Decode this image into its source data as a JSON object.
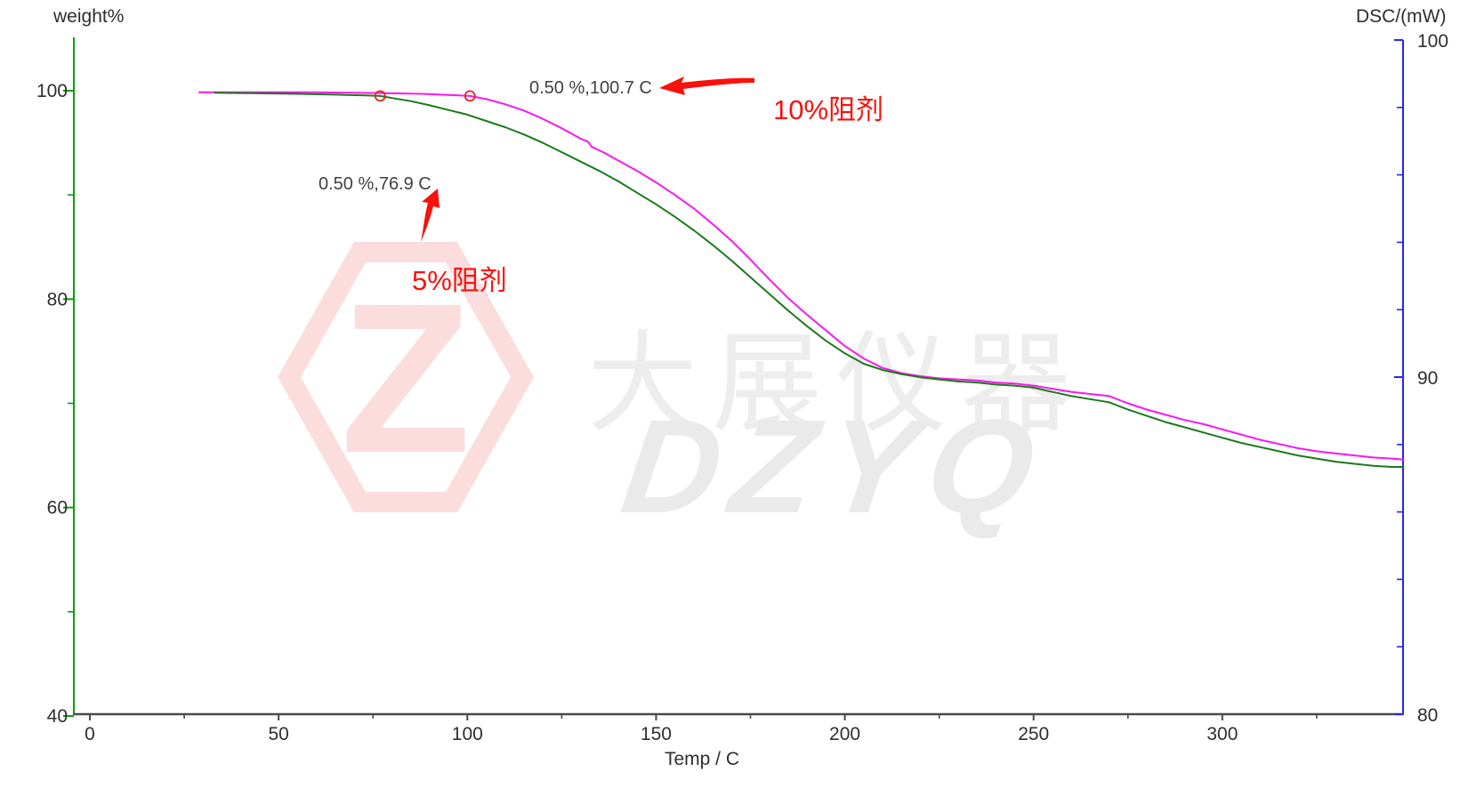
{
  "colors": {
    "left_axis": "#0aa00a",
    "right_axis": "#2727e8",
    "x_axis": "#4a4a4a",
    "tick_text": "#2e2e2e",
    "annotation_text": "#3f3f49",
    "red": "#fb100c",
    "watermark_pink": "#fbdddd",
    "watermark_gray": "#ededed",
    "series_10pct": "#f917ef",
    "series_5pct": "#1b7a1b",
    "marker": "#e8251a"
  },
  "axes": {
    "left": {
      "label": "weight%",
      "major_ticks": [
        100,
        80,
        60,
        40
      ],
      "minor_ticks": [
        90,
        70,
        50
      ],
      "range": [
        40,
        100
      ]
    },
    "right": {
      "label": "DSC/(mW)",
      "major_ticks": [
        100,
        90,
        80
      ],
      "minor_ticks": [
        98,
        96,
        94,
        92,
        88,
        86,
        84,
        82
      ],
      "range": [
        80,
        100
      ]
    },
    "bottom": {
      "label": "Temp / C",
      "major_ticks": [
        0,
        50,
        100,
        150,
        200,
        250,
        300
      ],
      "minor_ticks": [
        25,
        75,
        125,
        175,
        225,
        275,
        325
      ],
      "range": [
        0,
        348
      ]
    }
  },
  "annotations": {
    "p1": {
      "text": "0.50 %,100.7 C",
      "temp": 100.7,
      "weight_pct": 99.5
    },
    "p2": {
      "text": "0.50 %,76.9 C",
      "temp": 76.9,
      "weight_pct": 99.5
    },
    "l1": {
      "text": "10%阻剂"
    },
    "l2": {
      "text": "5%阻剂"
    }
  },
  "watermark": {
    "cn": "大展仪器",
    "en": "DZYQ",
    "logo_letter": "Z"
  },
  "chart_data": {
    "type": "line",
    "title": "",
    "xlabel": "Temp / C",
    "ylabel_left": "weight%",
    "ylabel_right": "DSC/(mW)",
    "x_range": [
      0,
      350
    ],
    "y_left_range": [
      40,
      100
    ],
    "y_right_range": [
      80,
      100
    ],
    "grid": false,
    "legend": "none",
    "markers": [
      {
        "series": "5%阻剂",
        "temp": 76.9,
        "weight": 99.5
      },
      {
        "series": "10%阻剂",
        "temp": 100.7,
        "weight": 99.5
      }
    ],
    "series": [
      {
        "name": "10%阻剂",
        "color": "#f917ef",
        "axis": "left",
        "points": [
          [
            29,
            99.85
          ],
          [
            40,
            99.85
          ],
          [
            50,
            99.85
          ],
          [
            60,
            99.85
          ],
          [
            70,
            99.8
          ],
          [
            80,
            99.75
          ],
          [
            88,
            99.7
          ],
          [
            95,
            99.6
          ],
          [
            100.7,
            99.5
          ],
          [
            105,
            99.2
          ],
          [
            110,
            98.7
          ],
          [
            115,
            98.1
          ],
          [
            120,
            97.3
          ],
          [
            125,
            96.4
          ],
          [
            130,
            95.4
          ],
          [
            132,
            95.1
          ],
          [
            133,
            94.6
          ],
          [
            136,
            94.1
          ],
          [
            140,
            93.3
          ],
          [
            145,
            92.3
          ],
          [
            150,
            91.2
          ],
          [
            155,
            90.0
          ],
          [
            160,
            88.7
          ],
          [
            165,
            87.2
          ],
          [
            170,
            85.6
          ],
          [
            175,
            83.8
          ],
          [
            180,
            81.9
          ],
          [
            185,
            80.1
          ],
          [
            190,
            78.5
          ],
          [
            195,
            77.0
          ],
          [
            200,
            75.5
          ],
          [
            205,
            74.3
          ],
          [
            210,
            73.4
          ],
          [
            215,
            72.9
          ],
          [
            220,
            72.6
          ],
          [
            225,
            72.4
          ],
          [
            230,
            72.3
          ],
          [
            235,
            72.2
          ],
          [
            240,
            72.0
          ],
          [
            245,
            71.9
          ],
          [
            250,
            71.7
          ],
          [
            255,
            71.4
          ],
          [
            260,
            71.1
          ],
          [
            265,
            70.9
          ],
          [
            270,
            70.7
          ],
          [
            275,
            70.0
          ],
          [
            280,
            69.4
          ],
          [
            285,
            68.9
          ],
          [
            290,
            68.4
          ],
          [
            295,
            68.0
          ],
          [
            300,
            67.5
          ],
          [
            305,
            67.0
          ],
          [
            310,
            66.5
          ],
          [
            315,
            66.1
          ],
          [
            320,
            65.7
          ],
          [
            325,
            65.4
          ],
          [
            330,
            65.2
          ],
          [
            335,
            65.0
          ],
          [
            340,
            64.8
          ],
          [
            345,
            64.7
          ],
          [
            348,
            64.6
          ]
        ]
      },
      {
        "name": "5%阻剂",
        "color": "#1b7a1b",
        "axis": "left",
        "points": [
          [
            33,
            99.8
          ],
          [
            45,
            99.75
          ],
          [
            55,
            99.7
          ],
          [
            62,
            99.65
          ],
          [
            68,
            99.6
          ],
          [
            73,
            99.55
          ],
          [
            76.9,
            99.5
          ],
          [
            80,
            99.3
          ],
          [
            85,
            99.0
          ],
          [
            90,
            98.6
          ],
          [
            95,
            98.15
          ],
          [
            100,
            97.7
          ],
          [
            105,
            97.1
          ],
          [
            110,
            96.5
          ],
          [
            115,
            95.8
          ],
          [
            120,
            95.0
          ],
          [
            125,
            94.1
          ],
          [
            130,
            93.2
          ],
          [
            135,
            92.3
          ],
          [
            140,
            91.3
          ],
          [
            145,
            90.2
          ],
          [
            150,
            89.1
          ],
          [
            155,
            87.9
          ],
          [
            160,
            86.6
          ],
          [
            165,
            85.2
          ],
          [
            170,
            83.7
          ],
          [
            175,
            82.1
          ],
          [
            180,
            80.5
          ],
          [
            185,
            78.9
          ],
          [
            190,
            77.4
          ],
          [
            195,
            76.0
          ],
          [
            200,
            74.8
          ],
          [
            205,
            73.8
          ],
          [
            210,
            73.2
          ],
          [
            215,
            72.8
          ],
          [
            220,
            72.5
          ],
          [
            225,
            72.3
          ],
          [
            230,
            72.1
          ],
          [
            235,
            72.0
          ],
          [
            240,
            71.8
          ],
          [
            245,
            71.7
          ],
          [
            250,
            71.5
          ],
          [
            255,
            71.1
          ],
          [
            260,
            70.7
          ],
          [
            265,
            70.4
          ],
          [
            270,
            70.1
          ],
          [
            275,
            69.4
          ],
          [
            280,
            68.8
          ],
          [
            285,
            68.2
          ],
          [
            290,
            67.7
          ],
          [
            295,
            67.2
          ],
          [
            300,
            66.7
          ],
          [
            305,
            66.2
          ],
          [
            310,
            65.8
          ],
          [
            315,
            65.4
          ],
          [
            320,
            65.0
          ],
          [
            325,
            64.7
          ],
          [
            330,
            64.4
          ],
          [
            335,
            64.2
          ],
          [
            340,
            64.0
          ],
          [
            345,
            63.9
          ],
          [
            348,
            63.9
          ]
        ]
      }
    ]
  }
}
